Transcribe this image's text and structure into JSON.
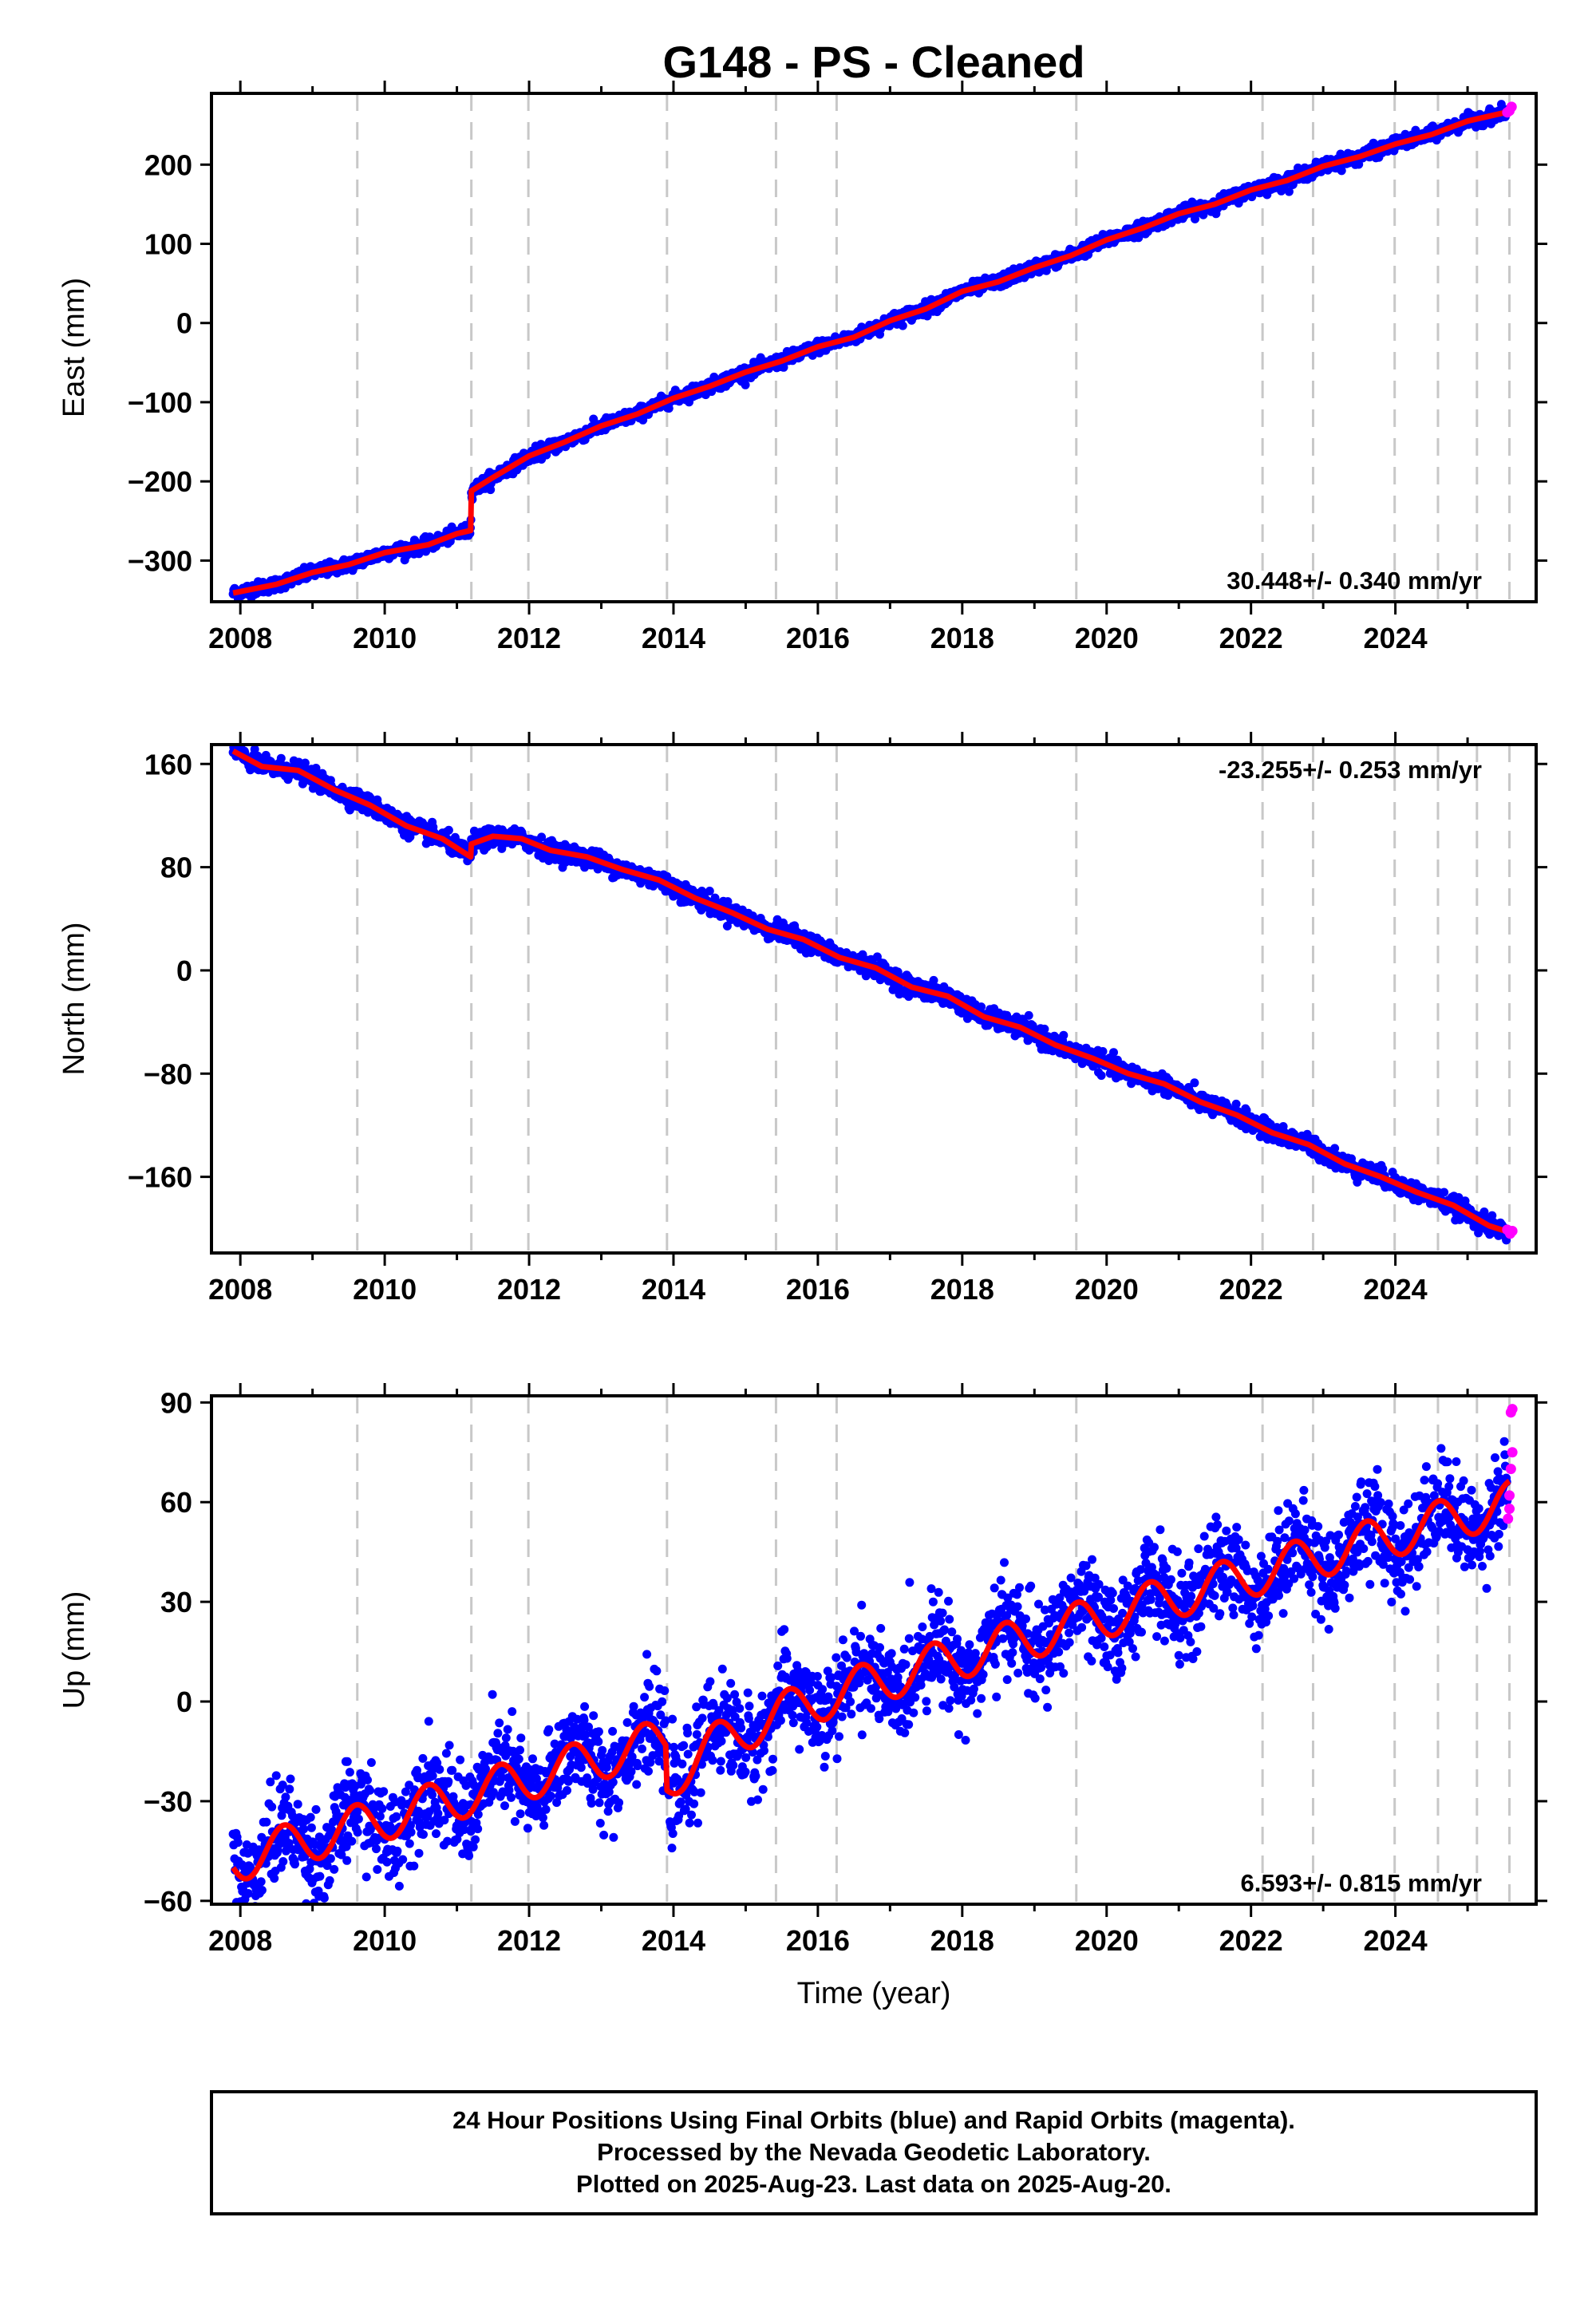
{
  "chart_data": [
    {
      "type": "scatter",
      "panel": "east",
      "title": "G148  - PS - Cleaned",
      "xlabel": "",
      "ylabel": "East (mm)",
      "xlim": [
        2007.6,
        2025.95
      ],
      "ylim": [
        -352,
        290
      ],
      "x_ticks": [
        2008,
        2010,
        2012,
        2014,
        2016,
        2018,
        2020,
        2022,
        2024
      ],
      "y_ticks": [
        -300,
        -200,
        -100,
        0,
        100,
        200
      ],
      "y_tick_labels": [
        "−300",
        "−200",
        "−100",
        "0",
        "100",
        "200"
      ],
      "rate_label": "30.448+/- 0.340 mm/yr",
      "rate_position": "bottom-right",
      "events": [
        2009.62,
        2011.2,
        2011.99,
        2013.91,
        2015.42,
        2016.26,
        2019.58,
        2022.16,
        2022.86,
        2023.99,
        2024.59,
        2025.13,
        2025.58
      ],
      "model_curve": [
        [
          2007.9,
          -341
        ],
        [
          2008.5,
          -330
        ],
        [
          2009.0,
          -315
        ],
        [
          2009.5,
          -305
        ],
        [
          2010.0,
          -290
        ],
        [
          2010.6,
          -280
        ],
        [
          2011.0,
          -266
        ],
        [
          2011.19,
          -262
        ],
        [
          2011.2,
          -212
        ],
        [
          2011.5,
          -195
        ],
        [
          2012.0,
          -168
        ],
        [
          2012.5,
          -150
        ],
        [
          2013.0,
          -130
        ],
        [
          2013.5,
          -115
        ],
        [
          2014.0,
          -95
        ],
        [
          2014.5,
          -80
        ],
        [
          2015.0,
          -62
        ],
        [
          2015.5,
          -48
        ],
        [
          2016.0,
          -30
        ],
        [
          2016.5,
          -18
        ],
        [
          2017.0,
          3
        ],
        [
          2017.5,
          18
        ],
        [
          2018.0,
          40
        ],
        [
          2018.5,
          52
        ],
        [
          2019.0,
          70
        ],
        [
          2019.5,
          85
        ],
        [
          2020.0,
          105
        ],
        [
          2020.5,
          120
        ],
        [
          2021.0,
          138
        ],
        [
          2021.5,
          150
        ],
        [
          2022.0,
          168
        ],
        [
          2022.5,
          180
        ],
        [
          2023.0,
          198
        ],
        [
          2023.5,
          210
        ],
        [
          2024.0,
          226
        ],
        [
          2024.5,
          238
        ],
        [
          2025.0,
          255
        ],
        [
          2025.58,
          267
        ]
      ],
      "rapid_points": [
        [
          2025.55,
          266
        ],
        [
          2025.58,
          268
        ],
        [
          2025.61,
          273
        ]
      ],
      "scatter_mm": 4,
      "series": [
        {
          "name": "Final Orbits",
          "color": "#0000ff"
        },
        {
          "name": "Rapid Orbits",
          "color": "#ff00ff"
        }
      ],
      "fit_color": "#ff0000"
    },
    {
      "type": "scatter",
      "panel": "north",
      "xlabel": "",
      "ylabel": "North (mm)",
      "xlim": [
        2007.6,
        2025.95
      ],
      "ylim": [
        -219,
        175
      ],
      "x_ticks": [
        2008,
        2010,
        2012,
        2014,
        2016,
        2018,
        2020,
        2022,
        2024
      ],
      "y_ticks": [
        -160,
        -80,
        0,
        80,
        160
      ],
      "y_tick_labels": [
        "−160",
        "−80",
        "0",
        "80",
        "160"
      ],
      "rate_label": "-23.255+/- 0.253 mm/yr",
      "rate_position": "top-right",
      "events": [
        2009.62,
        2011.2,
        2011.99,
        2013.91,
        2015.42,
        2016.26,
        2019.58,
        2022.16,
        2022.86,
        2023.99,
        2024.59,
        2025.13,
        2025.58
      ],
      "model_curve": [
        [
          2007.9,
          170
        ],
        [
          2008.3,
          158
        ],
        [
          2008.8,
          155
        ],
        [
          2009.3,
          140
        ],
        [
          2009.8,
          128
        ],
        [
          2010.3,
          112
        ],
        [
          2010.8,
          102
        ],
        [
          2011.19,
          88
        ],
        [
          2011.2,
          98
        ],
        [
          2011.5,
          104
        ],
        [
          2011.9,
          102
        ],
        [
          2012.3,
          93
        ],
        [
          2012.8,
          88
        ],
        [
          2013.3,
          78
        ],
        [
          2013.8,
          70
        ],
        [
          2014.3,
          56
        ],
        [
          2014.8,
          45
        ],
        [
          2015.3,
          32
        ],
        [
          2015.8,
          24
        ],
        [
          2016.3,
          10
        ],
        [
          2016.8,
          2
        ],
        [
          2017.3,
          -13
        ],
        [
          2017.8,
          -20
        ],
        [
          2018.3,
          -36
        ],
        [
          2018.8,
          -44
        ],
        [
          2019.3,
          -58
        ],
        [
          2019.8,
          -68
        ],
        [
          2020.3,
          -80
        ],
        [
          2020.8,
          -88
        ],
        [
          2021.3,
          -102
        ],
        [
          2021.8,
          -112
        ],
        [
          2022.3,
          -126
        ],
        [
          2022.8,
          -135
        ],
        [
          2023.3,
          -150
        ],
        [
          2023.8,
          -160
        ],
        [
          2024.3,
          -172
        ],
        [
          2024.8,
          -182
        ],
        [
          2025.3,
          -198
        ],
        [
          2025.58,
          -203
        ]
      ],
      "rapid_points": [
        [
          2025.55,
          -201
        ],
        [
          2025.59,
          -204
        ],
        [
          2025.62,
          -202
        ]
      ],
      "scatter_mm": 3.5,
      "series": [
        {
          "name": "Final Orbits",
          "color": "#0000ff"
        },
        {
          "name": "Rapid Orbits",
          "color": "#ff00ff"
        }
      ],
      "fit_color": "#ff0000"
    },
    {
      "type": "scatter",
      "panel": "up",
      "xlabel": "Time (year)",
      "ylabel": "Up (mm)",
      "xlim": [
        2007.6,
        2025.95
      ],
      "ylim": [
        -61,
        92
      ],
      "x_ticks": [
        2008,
        2010,
        2012,
        2014,
        2016,
        2018,
        2020,
        2022,
        2024
      ],
      "y_ticks": [
        -60,
        -30,
        0,
        30,
        60,
        90
      ],
      "y_tick_labels": [
        "−60",
        "−30",
        "0",
        "30",
        "60",
        "90"
      ],
      "rate_label": "6.593+/- 0.815 mm/yr",
      "rate_position": "bottom-right",
      "events": [
        2009.62,
        2011.2,
        2011.99,
        2013.91,
        2015.42,
        2016.26,
        2019.58,
        2022.16,
        2022.86,
        2023.99,
        2024.59,
        2025.13,
        2025.58
      ],
      "trend": {
        "t0": 2007.9,
        "y0": -48,
        "slope": 6.1
      },
      "seasonal_amp": 6.5,
      "offsets": [
        [
          2013.91,
          -13
        ]
      ],
      "rapid_points": [
        [
          2025.56,
          55
        ],
        [
          2025.58,
          62
        ],
        [
          2025.6,
          70
        ],
        [
          2025.62,
          75
        ],
        [
          2025.6,
          87
        ],
        [
          2025.62,
          88
        ],
        [
          2025.58,
          58
        ]
      ],
      "scatter_mm": 7,
      "series": [
        {
          "name": "Final Orbits",
          "color": "#0000ff"
        },
        {
          "name": "Rapid Orbits",
          "color": "#ff00ff"
        }
      ],
      "fit_color": "#ff0000"
    }
  ],
  "footer": {
    "line1": "24 Hour Positions Using Final Orbits (blue) and Rapid Orbits (magenta).",
    "line2": "Processed by the Nevada Geodetic Laboratory.",
    "line3": "Plotted on 2025-Aug-23. Last data on 2025-Aug-20."
  }
}
